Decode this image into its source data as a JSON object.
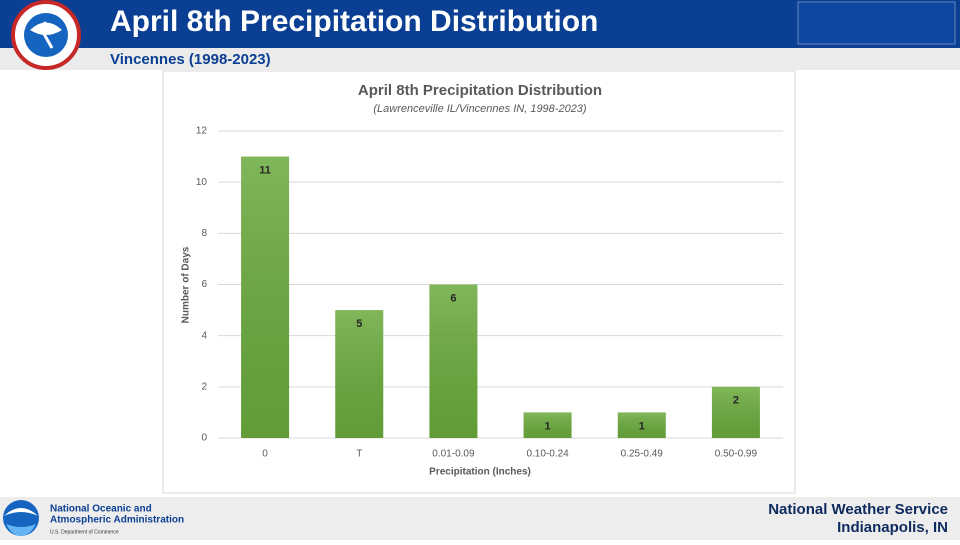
{
  "header": {
    "title": "April 8th Precipitation Distribution",
    "subtitle": "Vincennes (1998-2023)"
  },
  "footer": {
    "agency_line1": "National Oceanic and",
    "agency_line2": "Atmospheric Administration",
    "department": "U.S. Department of Commerce",
    "office_line1": "National Weather Service",
    "office_line2": "Indianapolis, IN"
  },
  "chart_data": {
    "type": "bar",
    "title": "April 8th Precipitation Distribution",
    "subtitle": "(Lawrenceville IL/Vincennes IN, 1998-2023)",
    "x_label": "Precipitation (Inches)",
    "y_label": "Number of Days",
    "categories": [
      "0",
      "T",
      "0.01-0.09",
      "0.10-0.24",
      "0.25-0.49",
      "0.50-0.99"
    ],
    "values": [
      11,
      5,
      6,
      1,
      1,
      2
    ],
    "color": "#6aaa3c",
    "ylim": [
      0,
      12
    ],
    "yticks": [
      0,
      2,
      4,
      6,
      8,
      10,
      12
    ],
    "grid": true
  }
}
